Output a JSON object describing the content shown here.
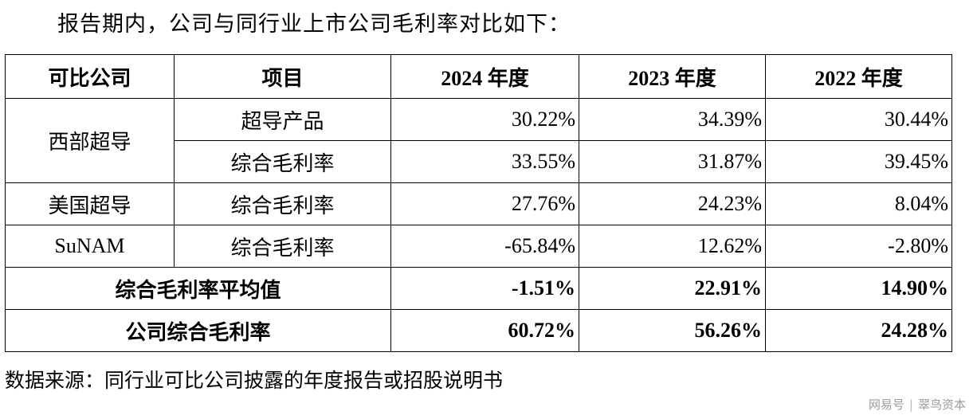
{
  "intro_text": "报告期内，公司与同行业上市公司毛利率对比如下：",
  "table": {
    "headers": [
      "可比公司",
      "项目",
      "2024 年度",
      "2023 年度",
      "2022 年度"
    ],
    "rows": [
      {
        "company": "西部超导",
        "item": "超导产品",
        "values": [
          "30.22%",
          "34.39%",
          "30.44%"
        ]
      },
      {
        "company": "西部超导",
        "item": "综合毛利率",
        "values": [
          "33.55%",
          "31.87%",
          "39.45%"
        ]
      },
      {
        "company": "美国超导",
        "item": "综合毛利率",
        "values": [
          "27.76%",
          "24.23%",
          "8.04%"
        ]
      },
      {
        "company": "SuNAM",
        "item": "综合毛利率",
        "values": [
          "-65.84%",
          "12.62%",
          "-2.80%"
        ]
      }
    ],
    "average": {
      "label": "综合毛利率平均值",
      "values": [
        "-1.51%",
        "22.91%",
        "14.90%"
      ]
    },
    "company_own": {
      "label": "公司综合毛利率",
      "values": [
        "60.72%",
        "56.26%",
        "24.28%"
      ]
    }
  },
  "source_note": "数据来源：同行业可比公司披露的年度报告或招股说明书",
  "watermark": {
    "left": "网易号",
    "right": "翠鸟资本"
  }
}
